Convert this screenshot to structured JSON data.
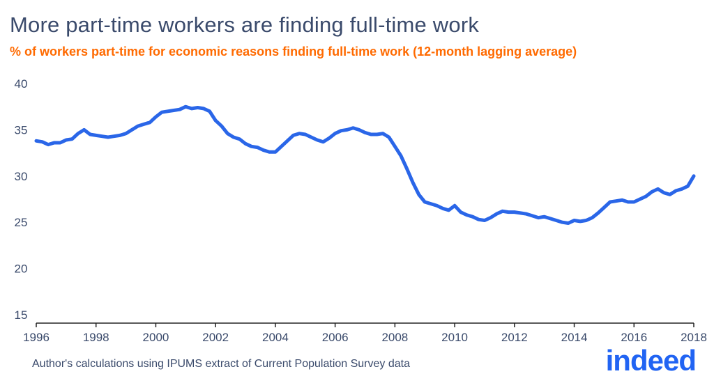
{
  "title": "More part-time workers are finding full-time work",
  "subtitle": "% of workers part-time for economic reasons finding full-time work (12-month lagging average)",
  "source": "Author's calculations using IPUMS extract of Current Population Survey data",
  "logo_text": "indeed",
  "colors": {
    "line": "#2a66e8",
    "title": "#3a4a6b",
    "subtitle": "#ff6a00",
    "axis": "#222222",
    "logo": "#2164f3"
  },
  "chart_data": {
    "type": "line",
    "title": "More part-time workers are finding full-time work",
    "subtitle": "% of workers part-time for economic reasons finding full-time work (12-month lagging average)",
    "xlabel": "",
    "ylabel": "",
    "xlim": [
      1996,
      2018
    ],
    "ylim": [
      15,
      40
    ],
    "xticks": [
      1996,
      1998,
      2000,
      2002,
      2004,
      2006,
      2008,
      2010,
      2012,
      2014,
      2016,
      2018
    ],
    "yticks": [
      15,
      20,
      25,
      30,
      35,
      40
    ],
    "grid": false,
    "legend": "none",
    "series": [
      {
        "x": [
          1996.0,
          1996.2,
          1996.4,
          1996.6,
          1996.8,
          1997.0,
          1997.2,
          1997.4,
          1997.6,
          1997.8,
          1998.0,
          1998.2,
          1998.4,
          1998.6,
          1998.8,
          1999.0,
          1999.2,
          1999.4,
          1999.6,
          1999.8,
          2000.0,
          2000.2,
          2000.4,
          2000.6,
          2000.8,
          2001.0,
          2001.2,
          2001.4,
          2001.6,
          2001.8,
          2002.0,
          2002.2,
          2002.4,
          2002.6,
          2002.8,
          2003.0,
          2003.2,
          2003.4,
          2003.6,
          2003.8,
          2004.0,
          2004.2,
          2004.4,
          2004.6,
          2004.8,
          2005.0,
          2005.2,
          2005.4,
          2005.6,
          2005.8,
          2006.0,
          2006.2,
          2006.4,
          2006.6,
          2006.8,
          2007.0,
          2007.2,
          2007.4,
          2007.6,
          2007.8,
          2008.0,
          2008.2,
          2008.4,
          2008.6,
          2008.8,
          2009.0,
          2009.2,
          2009.4,
          2009.6,
          2009.8,
          2010.0,
          2010.2,
          2010.4,
          2010.6,
          2010.8,
          2011.0,
          2011.2,
          2011.4,
          2011.6,
          2011.8,
          2012.0,
          2012.2,
          2012.4,
          2012.6,
          2012.8,
          2013.0,
          2013.2,
          2013.4,
          2013.6,
          2013.8,
          2014.0,
          2014.2,
          2014.4,
          2014.6,
          2014.8,
          2015.0,
          2015.2,
          2015.4,
          2015.6,
          2015.8,
          2016.0,
          2016.2,
          2016.4,
          2016.6,
          2016.8,
          2017.0,
          2017.2,
          2017.4,
          2017.6,
          2017.8,
          2018.0
        ],
        "y": [
          33.8,
          33.7,
          33.4,
          33.6,
          33.6,
          33.9,
          34.0,
          34.6,
          35.0,
          34.5,
          34.4,
          34.3,
          34.2,
          34.3,
          34.4,
          34.6,
          35.0,
          35.4,
          35.6,
          35.8,
          36.4,
          36.9,
          37.0,
          37.1,
          37.2,
          37.5,
          37.3,
          37.4,
          37.3,
          37.0,
          36.0,
          35.4,
          34.6,
          34.2,
          34.0,
          33.5,
          33.2,
          33.1,
          32.8,
          32.6,
          32.6,
          33.2,
          33.8,
          34.4,
          34.6,
          34.5,
          34.2,
          33.9,
          33.7,
          34.1,
          34.6,
          34.9,
          35.0,
          35.2,
          35.0,
          34.7,
          34.5,
          34.5,
          34.6,
          34.2,
          33.2,
          32.2,
          30.8,
          29.3,
          28.0,
          27.2,
          27.0,
          26.8,
          26.5,
          26.3,
          26.8,
          26.1,
          25.8,
          25.6,
          25.3,
          25.2,
          25.5,
          25.9,
          26.2,
          26.1,
          26.1,
          26.0,
          25.9,
          25.7,
          25.5,
          25.6,
          25.4,
          25.2,
          25.0,
          24.9,
          25.2,
          25.1,
          25.2,
          25.5,
          26.0,
          26.6,
          27.2,
          27.3,
          27.4,
          27.2,
          27.2,
          27.5,
          27.8,
          28.3,
          28.6,
          28.2,
          28.0,
          28.4,
          28.6,
          28.9,
          30.0
        ]
      }
    ]
  }
}
